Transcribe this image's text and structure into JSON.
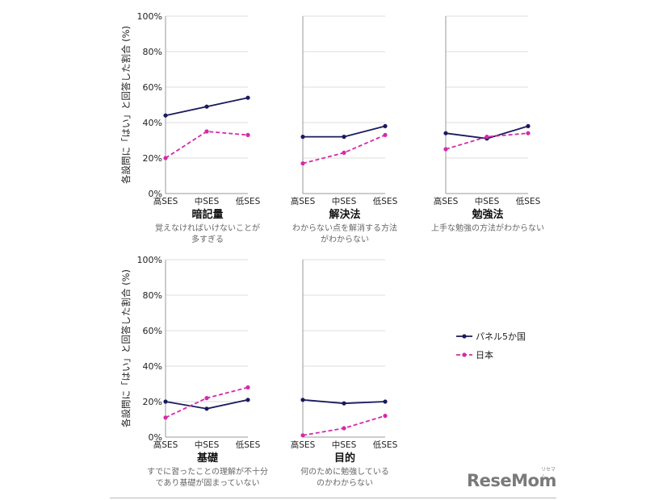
{
  "colors": {
    "panel": "#1a1a5e",
    "japan": "#d42aa8",
    "grid": "#dcdcdc",
    "axis": "#9a9a9a",
    "title": "#111111",
    "subtitle": "#666666"
  },
  "y_axis_title": "各設問に「はい」と回答した割合 (%)",
  "brand": {
    "logo": "ReseMom",
    "kana": "リセマム"
  },
  "chart_data": [
    {
      "type": "line",
      "title": "暗記量",
      "subtitle_lines": [
        "覚えなければいけないことが",
        "多すぎる"
      ],
      "categories": [
        "高SES",
        "中SES",
        "低SES"
      ],
      "yticks": [
        "0%",
        "20%",
        "40%",
        "60%",
        "80%",
        "100%"
      ],
      "ylim": [
        0,
        100
      ],
      "series": [
        {
          "name": "パネル5か国",
          "values": [
            44,
            49,
            54
          ]
        },
        {
          "name": "日本",
          "values": [
            20,
            35,
            33
          ]
        }
      ]
    },
    {
      "type": "line",
      "title": "解決法",
      "subtitle_lines": [
        "わからない点を解消する方法",
        "がわからない"
      ],
      "categories": [
        "高SES",
        "中SES",
        "低SES"
      ],
      "ylim": [
        0,
        100
      ],
      "series": [
        {
          "name": "パネル5か国",
          "values": [
            32,
            32,
            38
          ]
        },
        {
          "name": "日本",
          "values": [
            17,
            23,
            33
          ]
        }
      ]
    },
    {
      "type": "line",
      "title": "勉強法",
      "subtitle_lines": [
        "上手な勉強の方法がわからない"
      ],
      "categories": [
        "高SES",
        "中SES",
        "低SES"
      ],
      "ylim": [
        0,
        100
      ],
      "series": [
        {
          "name": "パネル5か国",
          "values": [
            34,
            31,
            38
          ]
        },
        {
          "name": "日本",
          "values": [
            25,
            32,
            34
          ]
        }
      ]
    },
    {
      "type": "line",
      "title": "基礎",
      "subtitle_lines": [
        "すでに習ったことの理解が不十分",
        "であり基礎が固まっていない"
      ],
      "categories": [
        "高SES",
        "中SES",
        "低SES"
      ],
      "yticks": [
        "0%",
        "20%",
        "40%",
        "60%",
        "80%",
        "100%"
      ],
      "ylim": [
        0,
        100
      ],
      "series": [
        {
          "name": "パネル5か国",
          "values": [
            20,
            16,
            21
          ]
        },
        {
          "name": "日本",
          "values": [
            11,
            22,
            28
          ]
        }
      ]
    },
    {
      "type": "line",
      "title": "目的",
      "subtitle_lines": [
        "何のために勉強している",
        "のかわからない"
      ],
      "categories": [
        "高SES",
        "中SES",
        "低SES"
      ],
      "ylim": [
        0,
        100
      ],
      "series": [
        {
          "name": "パネル5か国",
          "values": [
            21,
            19,
            20
          ]
        },
        {
          "name": "日本",
          "values": [
            1,
            5,
            12
          ]
        }
      ]
    }
  ],
  "legend": [
    {
      "label": "パネル5か国",
      "style": "solid"
    },
    {
      "label": "日本",
      "style": "dashed"
    }
  ]
}
